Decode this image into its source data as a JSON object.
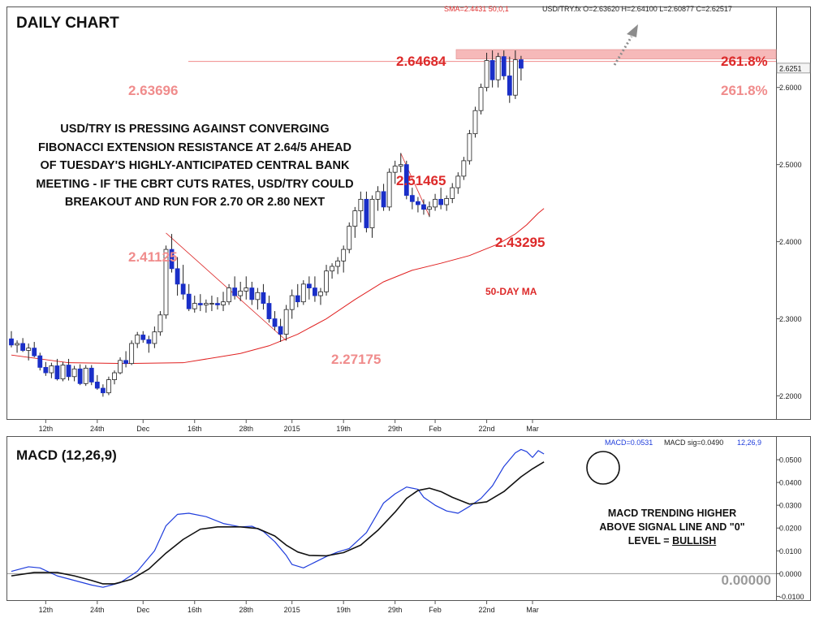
{
  "chart_data": [
    {
      "type": "candlestick",
      "title": "DAILY CHART",
      "header": {
        "sma": "SMA=2.4431  50,0,1",
        "ohlc": "USD/TRY.fx O=2.63620 H=2.64100 L=2.60877 C=2.62517"
      },
      "last_price_label": "2.6251",
      "y_range": [
        2.17,
        2.705
      ],
      "y_ticks": [
        {
          "v": 2.2,
          "label": "2.2000"
        },
        {
          "v": 2.3,
          "label": "2.3000"
        },
        {
          "v": 2.4,
          "label": "2.4000"
        },
        {
          "v": 2.5,
          "label": "2.5000"
        },
        {
          "v": 2.6,
          "label": "2.6000"
        }
      ],
      "x_labels": [
        {
          "i": 6,
          "label": "12th"
        },
        {
          "i": 15,
          "label": "24th"
        },
        {
          "i": 23,
          "label": "Dec"
        },
        {
          "i": 32,
          "label": "16th"
        },
        {
          "i": 41,
          "label": "28th"
        },
        {
          "i": 49,
          "label": "2015"
        },
        {
          "i": 58,
          "label": "19th"
        },
        {
          "i": 67,
          "label": "29th"
        },
        {
          "i": 74,
          "label": "Feb"
        },
        {
          "i": 83,
          "label": "22nd"
        },
        {
          "i": 91,
          "label": "Mar"
        }
      ],
      "candles": [
        [
          2.274,
          2.284,
          2.263,
          2.266
        ],
        [
          2.266,
          2.272,
          2.256,
          2.268
        ],
        [
          2.268,
          2.275,
          2.257,
          2.259
        ],
        [
          2.259,
          2.268,
          2.246,
          2.262
        ],
        [
          2.262,
          2.27,
          2.25,
          2.252
        ],
        [
          2.252,
          2.256,
          2.233,
          2.237
        ],
        [
          2.237,
          2.244,
          2.226,
          2.23
        ],
        [
          2.23,
          2.243,
          2.223,
          2.239
        ],
        [
          2.239,
          2.248,
          2.22,
          2.222
        ],
        [
          2.222,
          2.244,
          2.219,
          2.24
        ],
        [
          2.24,
          2.248,
          2.22,
          2.225
        ],
        [
          2.225,
          2.239,
          2.219,
          2.235
        ],
        [
          2.235,
          2.241,
          2.214,
          2.216
        ],
        [
          2.216,
          2.24,
          2.213,
          2.236
        ],
        [
          2.236,
          2.24,
          2.214,
          2.218
        ],
        [
          2.218,
          2.227,
          2.208,
          2.21
        ],
        [
          2.21,
          2.215,
          2.199,
          2.204
        ],
        [
          2.204,
          2.225,
          2.201,
          2.221
        ],
        [
          2.221,
          2.233,
          2.215,
          2.23
        ],
        [
          2.23,
          2.25,
          2.228,
          2.246
        ],
        [
          2.246,
          2.258,
          2.237,
          2.242
        ],
        [
          2.242,
          2.272,
          2.24,
          2.268
        ],
        [
          2.268,
          2.283,
          2.262,
          2.279
        ],
        [
          2.279,
          2.284,
          2.269,
          2.273
        ],
        [
          2.273,
          2.278,
          2.256,
          2.268
        ],
        [
          2.268,
          2.29,
          2.262,
          2.283
        ],
        [
          2.283,
          2.31,
          2.278,
          2.305
        ],
        [
          2.305,
          2.395,
          2.3,
          2.39
        ],
        [
          2.39,
          2.41,
          2.36,
          2.365
        ],
        [
          2.365,
          2.38,
          2.33,
          2.345
        ],
        [
          2.345,
          2.37,
          2.325,
          2.332
        ],
        [
          2.332,
          2.345,
          2.31,
          2.313
        ],
        [
          2.313,
          2.33,
          2.308,
          2.32
        ],
        [
          2.32,
          2.332,
          2.31,
          2.318
        ],
        [
          2.318,
          2.325,
          2.308,
          2.32
        ],
        [
          2.32,
          2.33,
          2.31,
          2.32
        ],
        [
          2.32,
          2.328,
          2.312,
          2.318
        ],
        [
          2.318,
          2.335,
          2.31,
          2.322
        ],
        [
          2.322,
          2.345,
          2.318,
          2.34
        ],
        [
          2.34,
          2.355,
          2.325,
          2.33
        ],
        [
          2.33,
          2.348,
          2.323,
          2.336
        ],
        [
          2.336,
          2.355,
          2.325,
          2.34
        ],
        [
          2.34,
          2.348,
          2.318,
          2.325
        ],
        [
          2.325,
          2.34,
          2.312,
          2.334
        ],
        [
          2.334,
          2.345,
          2.312,
          2.32
        ],
        [
          2.32,
          2.33,
          2.295,
          2.3
        ],
        [
          2.3,
          2.31,
          2.285,
          2.29
        ],
        [
          2.29,
          2.3,
          2.27,
          2.28
        ],
        [
          2.28,
          2.318,
          2.272,
          2.312
        ],
        [
          2.312,
          2.338,
          2.3,
          2.33
        ],
        [
          2.33,
          2.345,
          2.315,
          2.322
        ],
        [
          2.322,
          2.35,
          2.318,
          2.345
        ],
        [
          2.345,
          2.355,
          2.325,
          2.34
        ],
        [
          2.34,
          2.355,
          2.322,
          2.33
        ],
        [
          2.33,
          2.34,
          2.318,
          2.335
        ],
        [
          2.335,
          2.37,
          2.33,
          2.362
        ],
        [
          2.362,
          2.372,
          2.352,
          2.368
        ],
        [
          2.368,
          2.38,
          2.358,
          2.375
        ],
        [
          2.375,
          2.395,
          2.36,
          2.39
        ],
        [
          2.39,
          2.425,
          2.385,
          2.42
        ],
        [
          2.42,
          2.445,
          2.405,
          2.44
        ],
        [
          2.44,
          2.465,
          2.425,
          2.455
        ],
        [
          2.455,
          2.465,
          2.412,
          2.418
        ],
        [
          2.418,
          2.46,
          2.405,
          2.455
        ],
        [
          2.455,
          2.472,
          2.44,
          2.465
        ],
        [
          2.465,
          2.475,
          2.44,
          2.445
        ],
        [
          2.445,
          2.495,
          2.44,
          2.49
        ],
        [
          2.49,
          2.505,
          2.475,
          2.498
        ],
        [
          2.498,
          2.515,
          2.49,
          2.5
        ],
        [
          2.5,
          2.505,
          2.455,
          2.46
        ],
        [
          2.46,
          2.47,
          2.442,
          2.452
        ],
        [
          2.452,
          2.458,
          2.438,
          2.448
        ],
        [
          2.448,
          2.455,
          2.435,
          2.442
        ],
        [
          2.442,
          2.452,
          2.432,
          2.445
        ],
        [
          2.445,
          2.462,
          2.44,
          2.455
        ],
        [
          2.455,
          2.47,
          2.442,
          2.448
        ],
        [
          2.448,
          2.46,
          2.44,
          2.456
        ],
        [
          2.456,
          2.476,
          2.45,
          2.47
        ],
        [
          2.47,
          2.49,
          2.462,
          2.485
        ],
        [
          2.485,
          2.51,
          2.48,
          2.505
        ],
        [
          2.505,
          2.545,
          2.5,
          2.54
        ],
        [
          2.54,
          2.575,
          2.535,
          2.57
        ],
        [
          2.57,
          2.605,
          2.565,
          2.6
        ],
        [
          2.6,
          2.645,
          2.595,
          2.635
        ],
        [
          2.635,
          2.648,
          2.6,
          2.61
        ],
        [
          2.61,
          2.645,
          2.6,
          2.64
        ],
        [
          2.64,
          2.648,
          2.61,
          2.615
        ],
        [
          2.615,
          2.64,
          2.58,
          2.59
        ],
        [
          2.59,
          2.648,
          2.585,
          2.636
        ],
        [
          2.636,
          2.641,
          2.609,
          2.625
        ]
      ],
      "sma50": [
        [
          0,
          2.253
        ],
        [
          10,
          2.243
        ],
        [
          20,
          2.242
        ],
        [
          30,
          2.243
        ],
        [
          40,
          2.255
        ],
        [
          45,
          2.265
        ],
        [
          50,
          2.28
        ],
        [
          55,
          2.3
        ],
        [
          60,
          2.325
        ],
        [
          65,
          2.348
        ],
        [
          70,
          2.363
        ],
        [
          75,
          2.372
        ],
        [
          80,
          2.382
        ],
        [
          85,
          2.397
        ],
        [
          88,
          2.41
        ],
        [
          90,
          2.422
        ],
        [
          92,
          2.437
        ],
        [
          93,
          2.443
        ]
      ],
      "sma_label": "50-DAY MA",
      "fib_lines": [
        {
          "a": [
            27,
            2.41125
          ],
          "b": [
            48,
            2.27175
          ]
        },
        {
          "a": [
            68,
            2.51465
          ],
          "b": [
            73,
            2.43295
          ]
        }
      ],
      "level_labels": [
        {
          "text": "2.64684",
          "color": "#dd2a2a"
        },
        {
          "text": "2.63696",
          "color": "#f08c8c"
        },
        {
          "text": "2.41125",
          "color": "#f08c8c"
        },
        {
          "text": "2.27175",
          "color": "#f08c8c"
        },
        {
          "text": "2.51465",
          "color": "#dd2a2a"
        },
        {
          "text": "2.43295",
          "color": "#dd2a2a"
        },
        {
          "text": "261.8%",
          "color": "#dd2a2a"
        },
        {
          "text": "261.8%",
          "color": "#f08c8c"
        }
      ],
      "commentary": [
        "USD/TRY IS PRESSING AGAINST CONVERGING",
        "FIBONACCI EXTENSION RESISTANCE AT 2.64/5 AHEAD",
        "OF TUESDAY'S HIGHLY-ANTICIPATED CENTRAL BANK",
        "MEETING - IF THE CBRT CUTS RATES, USD/TRY COULD",
        "BREAKOUT AND RUN FOR 2.70 OR 2.80 NEXT"
      ],
      "colors": {
        "up": "#ffffff",
        "down": "#1a2fc8",
        "sma": "#e02020",
        "zone": "#f6b9b9",
        "accent": "#dd2a2a",
        "accent_light": "#f08c8c"
      }
    },
    {
      "type": "line",
      "title": "MACD (12,26,9)",
      "header": {
        "macd": "MACD=0.0531",
        "sig": "MACD sig=0.0490",
        "params": "12,26,9"
      },
      "y_range": [
        -0.012,
        0.06
      ],
      "y_ticks": [
        {
          "v": 0.05,
          "label": "0.0500"
        },
        {
          "v": 0.04,
          "label": "0.0400"
        },
        {
          "v": 0.03,
          "label": "0.0300"
        },
        {
          "v": 0.02,
          "label": "0.0200"
        },
        {
          "v": 0.01,
          "label": "0.0100"
        },
        {
          "v": 0.0,
          "label": "0.0000"
        },
        {
          "v": -0.01,
          "label": "-0.0100"
        }
      ],
      "zero_label": "0.00000",
      "series": [
        {
          "key": "macd",
          "color": "#1f3ddc",
          "points": [
            [
              0,
              0.001
            ],
            [
              3,
              0.003
            ],
            [
              5,
              0.0025
            ],
            [
              8,
              -0.001
            ],
            [
              11,
              -0.003
            ],
            [
              14,
              -0.005
            ],
            [
              16,
              -0.006
            ],
            [
              19,
              -0.004
            ],
            [
              22,
              0.001
            ],
            [
              25,
              0.01
            ],
            [
              27,
              0.021
            ],
            [
              29,
              0.026
            ],
            [
              31,
              0.0265
            ],
            [
              34,
              0.025
            ],
            [
              37,
              0.022
            ],
            [
              40,
              0.0205
            ],
            [
              42,
              0.0208
            ],
            [
              44,
              0.0185
            ],
            [
              46,
              0.014
            ],
            [
              48,
              0.008
            ],
            [
              49,
              0.004
            ],
            [
              51,
              0.0025
            ],
            [
              53,
              0.005
            ],
            [
              55,
              0.0075
            ],
            [
              57,
              0.0095
            ],
            [
              59,
              0.011
            ],
            [
              62,
              0.018
            ],
            [
              65,
              0.031
            ],
            [
              67,
              0.035
            ],
            [
              69,
              0.038
            ],
            [
              71,
              0.037
            ],
            [
              72,
              0.0335
            ],
            [
              74,
              0.03
            ],
            [
              76,
              0.0275
            ],
            [
              78,
              0.0265
            ],
            [
              80,
              0.0295
            ],
            [
              82,
              0.033
            ],
            [
              84,
              0.0385
            ],
            [
              86,
              0.047
            ],
            [
              88,
              0.053
            ],
            [
              89,
              0.0545
            ],
            [
              90,
              0.0535
            ],
            [
              91,
              0.051
            ],
            [
              92,
              0.054
            ],
            [
              93,
              0.0525
            ]
          ]
        },
        {
          "key": "signal",
          "color": "#111111",
          "points": [
            [
              0,
              -0.001
            ],
            [
              4,
              0.0005
            ],
            [
              8,
              0.0005
            ],
            [
              11,
              -0.001
            ],
            [
              14,
              -0.003
            ],
            [
              16,
              -0.0045
            ],
            [
              18,
              -0.0045
            ],
            [
              21,
              -0.0025
            ],
            [
              24,
              0.002
            ],
            [
              27,
              0.009
            ],
            [
              30,
              0.015
            ],
            [
              33,
              0.0195
            ],
            [
              36,
              0.0205
            ],
            [
              40,
              0.0205
            ],
            [
              43,
              0.0198
            ],
            [
              46,
              0.0165
            ],
            [
              48,
              0.0125
            ],
            [
              50,
              0.0095
            ],
            [
              52,
              0.008
            ],
            [
              55,
              0.0078
            ],
            [
              58,
              0.0092
            ],
            [
              61,
              0.0125
            ],
            [
              64,
              0.019
            ],
            [
              67,
              0.027
            ],
            [
              69,
              0.033
            ],
            [
              71,
              0.0365
            ],
            [
              73,
              0.0375
            ],
            [
              75,
              0.036
            ],
            [
              77,
              0.0335
            ],
            [
              80,
              0.0305
            ],
            [
              83,
              0.0315
            ],
            [
              86,
              0.036
            ],
            [
              89,
              0.0425
            ],
            [
              91,
              0.046
            ],
            [
              93,
              0.049
            ]
          ]
        }
      ],
      "commentary": [
        "MACD TRENDING HIGHER",
        "ABOVE SIGNAL LINE AND \"0\"",
        "LEVEL = "
      ],
      "commentary_emph": "BULLISH"
    }
  ]
}
